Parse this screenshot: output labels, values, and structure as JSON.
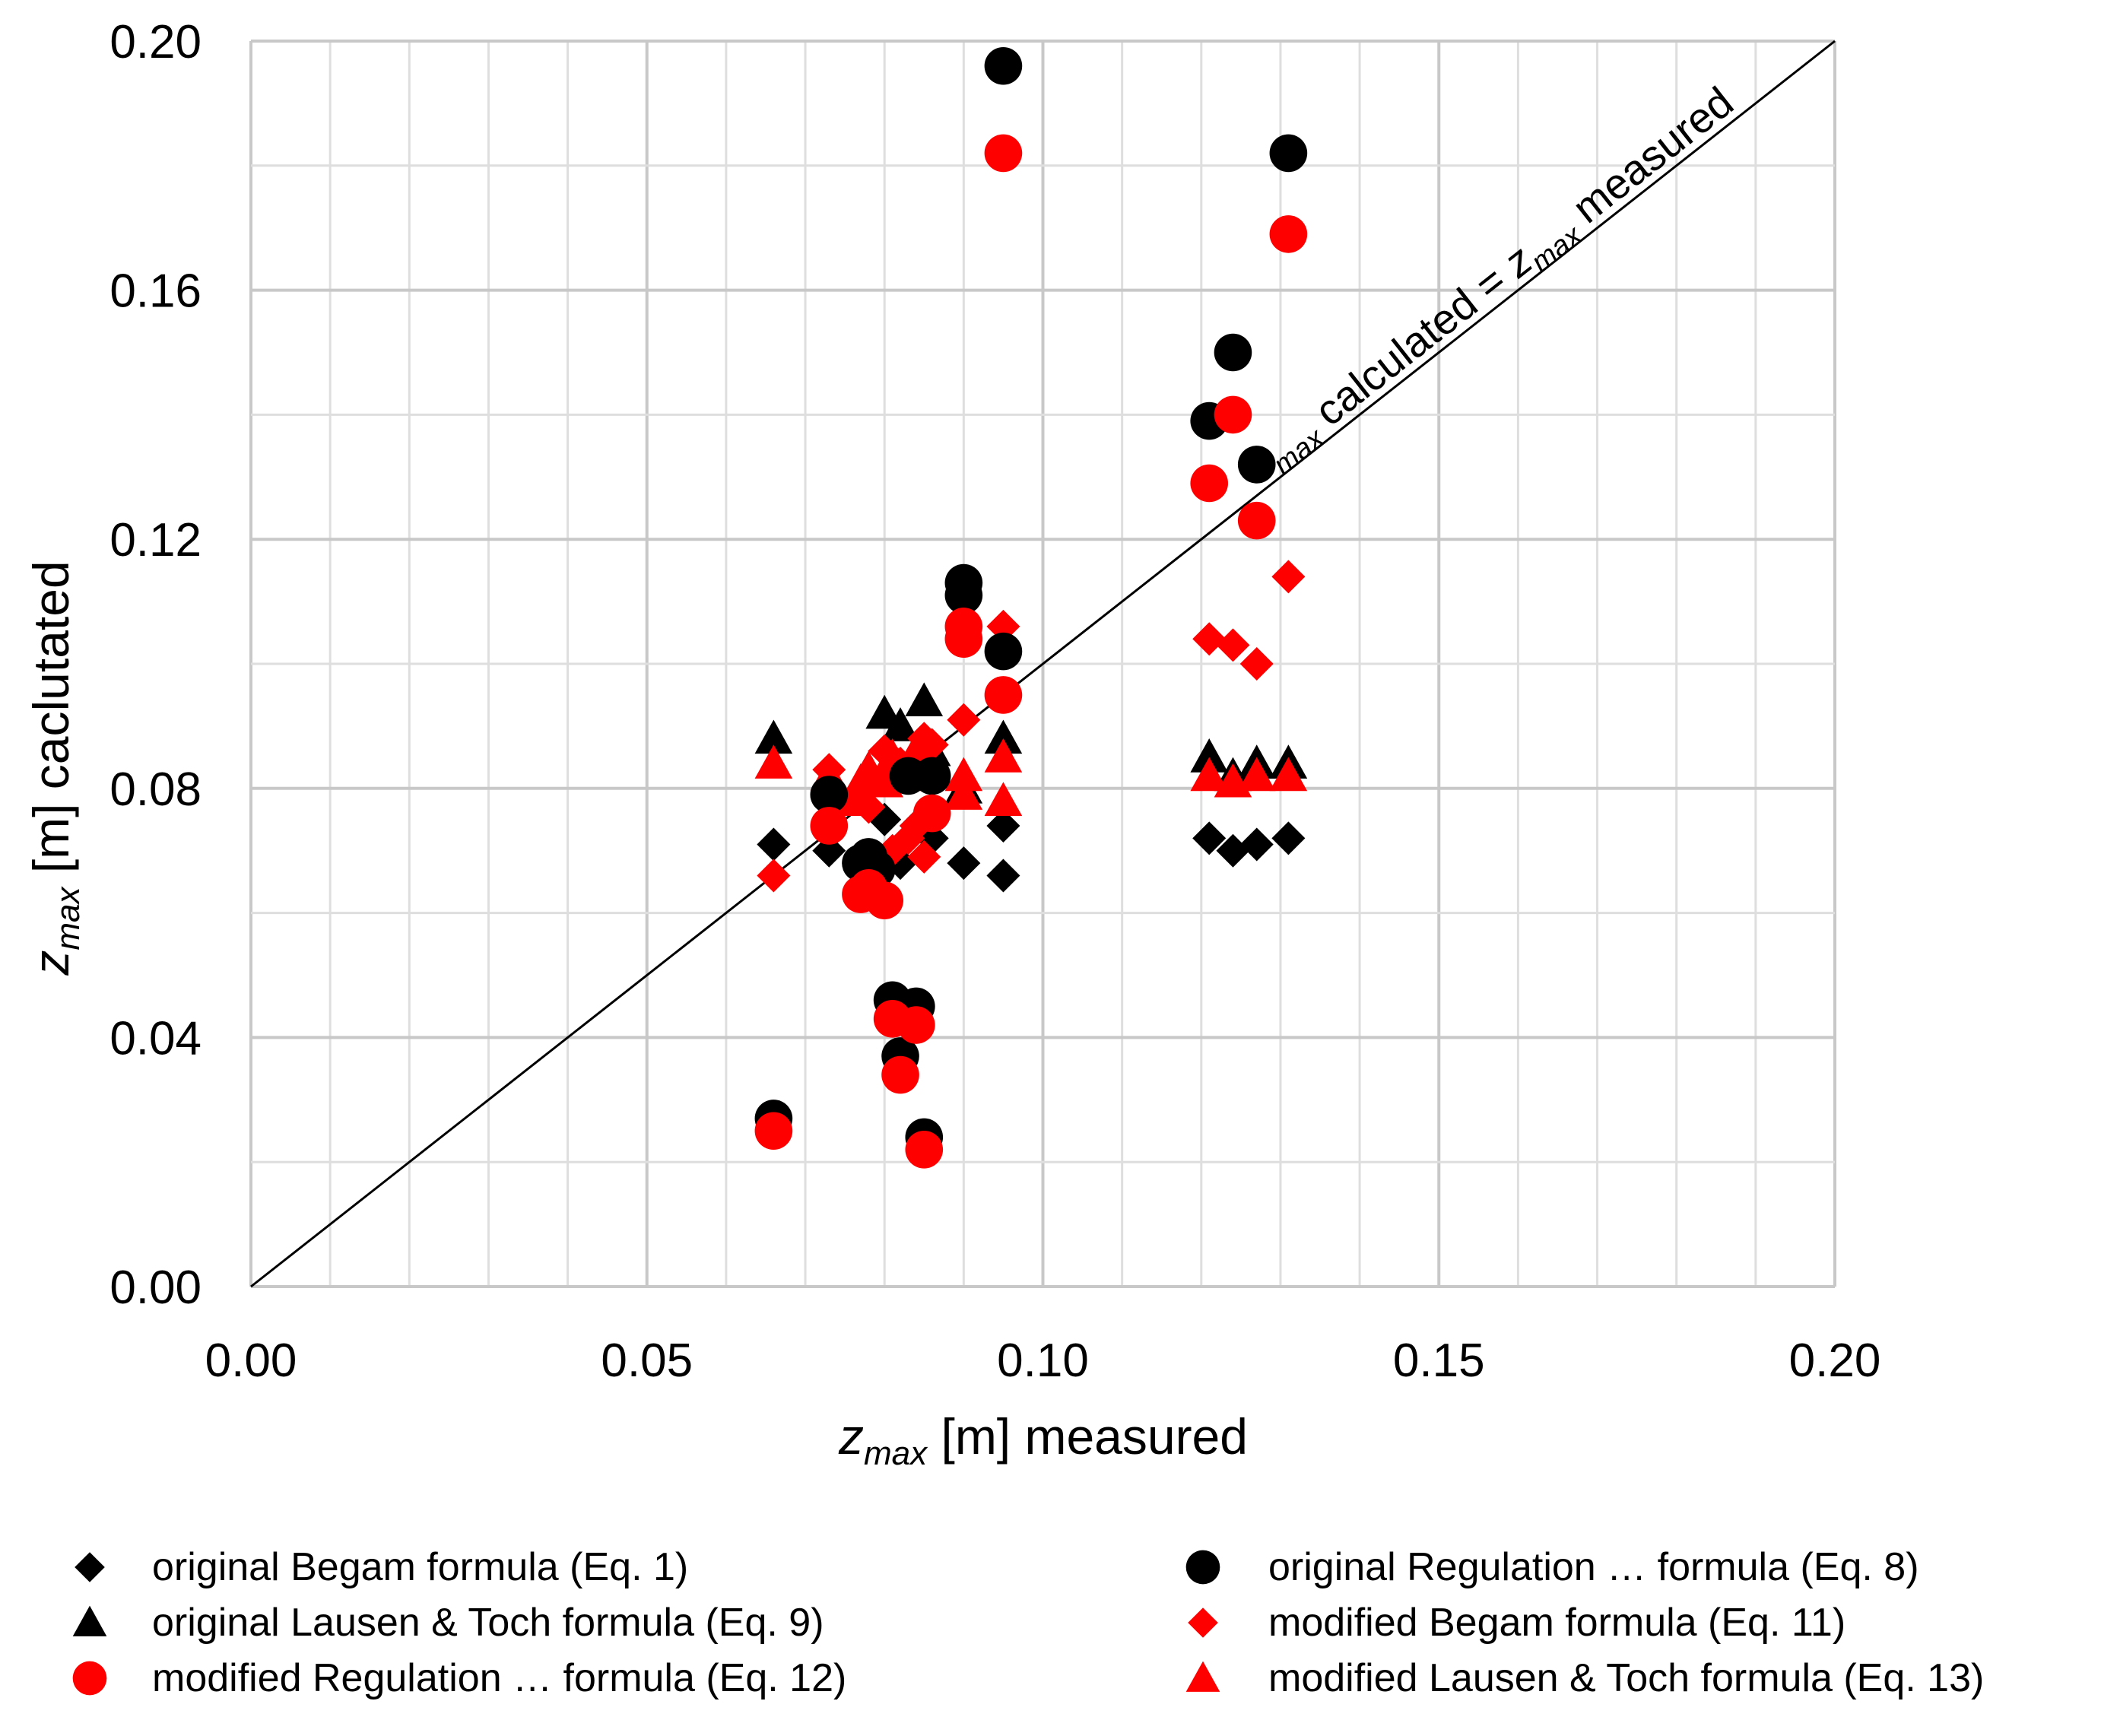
{
  "chart_data": {
    "type": "scatter",
    "xlim": [
      0,
      0.2
    ],
    "ylim": [
      0,
      0.2
    ],
    "x_ticks": [
      "0.00",
      "0.05",
      "0.10",
      "0.15",
      "0.20"
    ],
    "y_ticks": [
      "0.00",
      "0.04",
      "0.08",
      "0.12",
      "0.16",
      "0.20"
    ],
    "grid": true,
    "xlabel": {
      "var": "z",
      "sub": "max",
      "rest": " [m] measured"
    },
    "ylabel": {
      "var": "z",
      "sub": "max",
      "rest": " [m] caclutated"
    },
    "identity_line": {
      "from": [
        0,
        0
      ],
      "to": [
        0.2,
        0.2
      ],
      "label": {
        "var1": "z",
        "sub1": "max",
        "mid": " calculated = ",
        "var2": "z",
        "sub2": "max",
        "end": " measured"
      }
    },
    "legend_position": "bottom",
    "series": [
      {
        "name": "original Begam formula (Eq. 1)",
        "marker": "diamond",
        "color": "#000000",
        "points": [
          [
            0.066,
            0.071
          ],
          [
            0.073,
            0.07
          ],
          [
            0.078,
            0.067
          ],
          [
            0.08,
            0.075
          ],
          [
            0.082,
            0.068
          ],
          [
            0.084,
            0.074
          ],
          [
            0.086,
            0.072
          ],
          [
            0.09,
            0.068
          ],
          [
            0.095,
            0.074
          ],
          [
            0.095,
            0.066
          ],
          [
            0.121,
            0.072
          ],
          [
            0.124,
            0.07
          ],
          [
            0.127,
            0.071
          ],
          [
            0.131,
            0.072
          ]
        ]
      },
      {
        "name": "original Regulation … formula (Eq. 8)",
        "marker": "circle",
        "color": "#000000",
        "points": [
          [
            0.066,
            0.027
          ],
          [
            0.073,
            0.079
          ],
          [
            0.077,
            0.068
          ],
          [
            0.078,
            0.069
          ],
          [
            0.079,
            0.067
          ],
          [
            0.081,
            0.046
          ],
          [
            0.082,
            0.037
          ],
          [
            0.083,
            0.082
          ],
          [
            0.084,
            0.045
          ],
          [
            0.085,
            0.024
          ],
          [
            0.086,
            0.082
          ],
          [
            0.09,
            0.113
          ],
          [
            0.09,
            0.111
          ],
          [
            0.095,
            0.196
          ],
          [
            0.095,
            0.102
          ],
          [
            0.121,
            0.139
          ],
          [
            0.124,
            0.15
          ],
          [
            0.127,
            0.132
          ],
          [
            0.131,
            0.182
          ]
        ]
      },
      {
        "name": "original Lausen & Toch formula (Eq. 9)",
        "marker": "triangle",
        "color": "#000000",
        "points": [
          [
            0.066,
            0.088
          ],
          [
            0.073,
            0.081
          ],
          [
            0.078,
            0.083
          ],
          [
            0.08,
            0.092
          ],
          [
            0.082,
            0.09
          ],
          [
            0.085,
            0.094
          ],
          [
            0.086,
            0.086
          ],
          [
            0.09,
            0.08
          ],
          [
            0.095,
            0.088
          ],
          [
            0.121,
            0.085
          ],
          [
            0.124,
            0.082
          ],
          [
            0.127,
            0.084
          ],
          [
            0.131,
            0.084
          ]
        ]
      },
      {
        "name": "modified Begam formula (Eq. 11)",
        "marker": "diamond",
        "color": "#ff0000",
        "points": [
          [
            0.066,
            0.066
          ],
          [
            0.073,
            0.083
          ],
          [
            0.077,
            0.079
          ],
          [
            0.078,
            0.077
          ],
          [
            0.08,
            0.086
          ],
          [
            0.081,
            0.07
          ],
          [
            0.082,
            0.084
          ],
          [
            0.083,
            0.072
          ],
          [
            0.084,
            0.074
          ],
          [
            0.085,
            0.088
          ],
          [
            0.085,
            0.069
          ],
          [
            0.086,
            0.087
          ],
          [
            0.09,
            0.091
          ],
          [
            0.095,
            0.106
          ],
          [
            0.121,
            0.104
          ],
          [
            0.124,
            0.103
          ],
          [
            0.127,
            0.1
          ],
          [
            0.131,
            0.114
          ]
        ]
      },
      {
        "name": "modified Regulation … formula (Eq. 12)",
        "marker": "circle",
        "color": "#ff0000",
        "points": [
          [
            0.066,
            0.025
          ],
          [
            0.073,
            0.074
          ],
          [
            0.077,
            0.063
          ],
          [
            0.078,
            0.064
          ],
          [
            0.08,
            0.062
          ],
          [
            0.081,
            0.043
          ],
          [
            0.082,
            0.034
          ],
          [
            0.084,
            0.042
          ],
          [
            0.085,
            0.022
          ],
          [
            0.086,
            0.076
          ],
          [
            0.09,
            0.106
          ],
          [
            0.09,
            0.104
          ],
          [
            0.095,
            0.182
          ],
          [
            0.095,
            0.095
          ],
          [
            0.121,
            0.129
          ],
          [
            0.124,
            0.14
          ],
          [
            0.127,
            0.123
          ],
          [
            0.131,
            0.169
          ]
        ]
      },
      {
        "name": "modified Lausen & Toch formula (Eq. 13)",
        "marker": "triangle",
        "color": "#ff0000",
        "points": [
          [
            0.066,
            0.084
          ],
          [
            0.073,
            0.082
          ],
          [
            0.076,
            0.078
          ],
          [
            0.077,
            0.081
          ],
          [
            0.078,
            0.083
          ],
          [
            0.08,
            0.081
          ],
          [
            0.081,
            0.085
          ],
          [
            0.082,
            0.083
          ],
          [
            0.083,
            0.082
          ],
          [
            0.084,
            0.086
          ],
          [
            0.085,
            0.084
          ],
          [
            0.09,
            0.082
          ],
          [
            0.09,
            0.079
          ],
          [
            0.095,
            0.085
          ],
          [
            0.095,
            0.078
          ],
          [
            0.121,
            0.082
          ],
          [
            0.124,
            0.081
          ],
          [
            0.127,
            0.082
          ],
          [
            0.131,
            0.082
          ]
        ]
      }
    ]
  }
}
